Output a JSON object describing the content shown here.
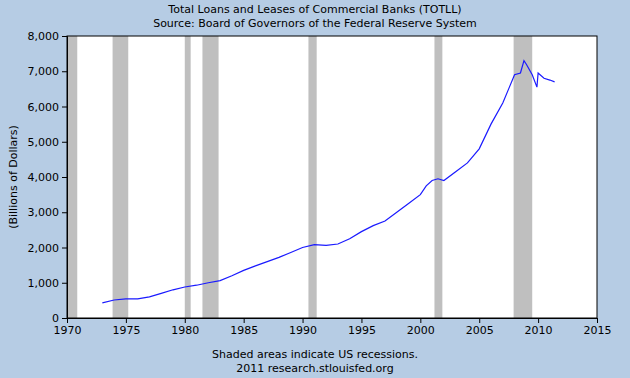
{
  "chart_data": {
    "type": "line",
    "title": "Total Loans and Leases of Commercial Banks (TOTLL)",
    "subtitle": "Source: Board of Governors of the Federal Reserve System",
    "y_label": "(Billions of Dollars)",
    "notes": [
      "Shaded areas indicate US recessions.",
      "2011 research.stlouisfed.org"
    ],
    "color": "#1a1aff",
    "grid": false,
    "x": [
      1973.0,
      1974.0,
      1975.0,
      1976.0,
      1977.0,
      1978.0,
      1979.0,
      1980.0,
      1981.0,
      1982.0,
      1983.0,
      1984.0,
      1985.0,
      1986.0,
      1987.0,
      1988.0,
      1989.0,
      1990.0,
      1991.0,
      1992.0,
      1993.0,
      1994.0,
      1995.0,
      1996.0,
      1997.0,
      1998.0,
      1999.0,
      2000.0,
      2000.5,
      2001.0,
      2001.5,
      2002.0,
      2003.0,
      2004.0,
      2005.0,
      2006.0,
      2007.0,
      2007.5,
      2008.0,
      2008.5,
      2008.8,
      2009.0,
      2009.5,
      2009.9,
      2010.0,
      2010.5,
      2011.0,
      2011.4
    ],
    "values": [
      430,
      510,
      540,
      545,
      600,
      700,
      800,
      880,
      930,
      1000,
      1060,
      1200,
      1350,
      1480,
      1600,
      1720,
      1860,
      2000,
      2080,
      2060,
      2100,
      2250,
      2450,
      2620,
      2750,
      3000,
      3250,
      3500,
      3750,
      3900,
      3950,
      3900,
      4150,
      4400,
      4800,
      5500,
      6100,
      6500,
      6900,
      6950,
      7300,
      7200,
      6900,
      6550,
      6950,
      6800,
      6750,
      6700
    ],
    "recessions": [
      {
        "start": 1969.92,
        "end": 1970.87
      },
      {
        "start": 1973.87,
        "end": 1975.2
      },
      {
        "start": 1980.0,
        "end": 1980.5
      },
      {
        "start": 1981.5,
        "end": 1982.87
      },
      {
        "start": 1990.5,
        "end": 1991.2
      },
      {
        "start": 2001.2,
        "end": 2001.87
      },
      {
        "start": 2007.92,
        "end": 2009.5
      }
    ],
    "xlim": [
      1970,
      2015
    ],
    "xticks": [
      1970,
      1975,
      1980,
      1985,
      1990,
      1995,
      2000,
      2005,
      2010,
      2015
    ],
    "ylim": [
      0,
      8000
    ],
    "yticks": [
      0,
      {
        "value": 1000,
        "label": "1,000"
      },
      {
        "value": 2000,
        "label": "2,000"
      },
      {
        "value": 3000,
        "label": "3,000"
      },
      {
        "value": 4000,
        "label": "4,000"
      },
      {
        "value": 5000,
        "label": "5,000"
      },
      {
        "value": 6000,
        "label": "6,000"
      },
      {
        "value": 7000,
        "label": "7,000"
      },
      {
        "value": 8000,
        "label": "8,000"
      }
    ]
  }
}
